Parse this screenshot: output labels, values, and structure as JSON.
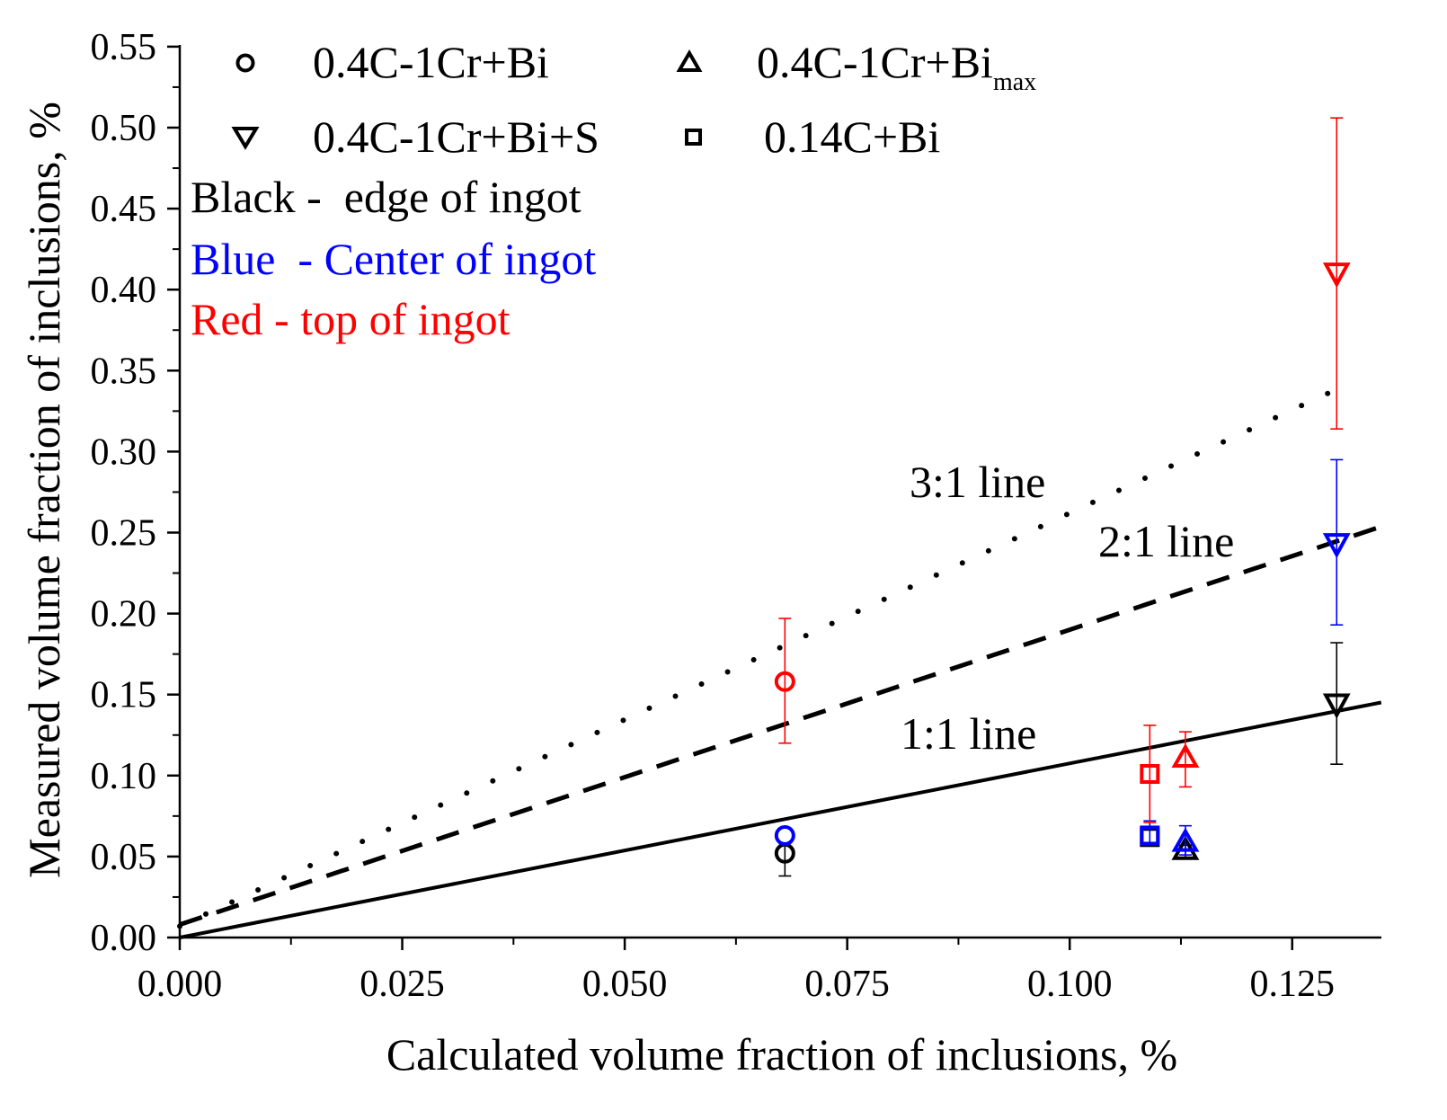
{
  "chart_data": {
    "type": "scatter",
    "xlabel": "Calculated volume fraction of inclusions, %",
    "ylabel": "Measured volume fraction of inclusions, %",
    "xlim": [
      0,
      0.135
    ],
    "ylim": [
      0,
      0.55
    ],
    "x_ticks": [
      "0.000",
      "0.025",
      "0.050",
      "0.075",
      "0.100",
      "0.125"
    ],
    "y_ticks": [
      "0.00",
      "0.05",
      "0.10",
      "0.15",
      "0.20",
      "0.25",
      "0.30",
      "0.35",
      "0.40",
      "0.45",
      "0.50",
      "0.55"
    ],
    "grid": false,
    "legend": {
      "placement": "top-left",
      "entries": [
        {
          "marker": "circle",
          "label": "0.4C-1Cr+Bi"
        },
        {
          "marker": "triangle-up",
          "label": "0.4C-1Cr+Bi",
          "subscript": "max"
        },
        {
          "marker": "triangle-down",
          "label": "0.4C-1Cr+Bi+S"
        },
        {
          "marker": "square",
          "label": "0.14C+Bi"
        }
      ]
    },
    "color_key": [
      {
        "text": "Black -  edge of ingot",
        "color": "#000000"
      },
      {
        "text": "Blue  - Center of ingot",
        "color": "#0000ff"
      },
      {
        "text": "Red - top of ingot",
        "color": "#ff0000"
      }
    ],
    "reference_lines": [
      {
        "label": "1:1 line",
        "style": "solid",
        "slope": 1.075,
        "intercept": 0.0,
        "x_range": [
          0,
          0.135
        ]
      },
      {
        "label": "2:1 line",
        "style": "dashed",
        "slope": 1.82,
        "intercept": 0.008,
        "x_range": [
          0,
          0.135
        ]
      },
      {
        "label": "3:1 line",
        "style": "dotted",
        "slope": 2.55,
        "intercept": 0.007,
        "x_range": [
          0,
          0.131
        ]
      }
    ],
    "series": [
      {
        "marker": "circle",
        "location": "edge",
        "color": "#000000",
        "points": [
          {
            "x": 0.068,
            "y": 0.052,
            "err_low": 0.038,
            "err_high": 0.058
          }
        ]
      },
      {
        "marker": "circle",
        "location": "center",
        "color": "#0000ff",
        "points": [
          {
            "x": 0.068,
            "y": 0.063
          }
        ]
      },
      {
        "marker": "circle",
        "location": "top",
        "color": "#ff0000",
        "points": [
          {
            "x": 0.068,
            "y": 0.158,
            "err_low": 0.12,
            "err_high": 0.197
          }
        ]
      },
      {
        "marker": "square",
        "location": "edge",
        "color": "#000000",
        "points": [
          {
            "x": 0.109,
            "y": 0.062
          }
        ]
      },
      {
        "marker": "square",
        "location": "center",
        "color": "#0000ff",
        "points": [
          {
            "x": 0.109,
            "y": 0.063,
            "err_low": 0.058,
            "err_high": 0.072
          }
        ]
      },
      {
        "marker": "square",
        "location": "top",
        "color": "#ff0000",
        "points": [
          {
            "x": 0.109,
            "y": 0.101,
            "err_low": 0.071,
            "err_high": 0.131
          }
        ]
      },
      {
        "marker": "triangle-up",
        "location": "edge",
        "color": "#000000",
        "points": [
          {
            "x": 0.113,
            "y": 0.054,
            "err_low": 0.049,
            "err_high": 0.057
          }
        ]
      },
      {
        "marker": "triangle-up",
        "location": "center",
        "color": "#0000ff",
        "points": [
          {
            "x": 0.113,
            "y": 0.059,
            "err_low": 0.051,
            "err_high": 0.069
          }
        ]
      },
      {
        "marker": "triangle-up",
        "location": "top",
        "color": "#ff0000",
        "points": [
          {
            "x": 0.113,
            "y": 0.111,
            "err_low": 0.093,
            "err_high": 0.127
          }
        ]
      },
      {
        "marker": "triangle-down",
        "location": "edge",
        "color": "#000000",
        "points": [
          {
            "x": 0.13,
            "y": 0.144,
            "err_low": 0.107,
            "err_high": 0.182
          }
        ]
      },
      {
        "marker": "triangle-down",
        "location": "center",
        "color": "#0000ff",
        "points": [
          {
            "x": 0.13,
            "y": 0.243,
            "err_low": 0.193,
            "err_high": 0.295
          }
        ]
      },
      {
        "marker": "triangle-down",
        "location": "top",
        "color": "#ff0000",
        "points": [
          {
            "x": 0.13,
            "y": 0.41,
            "err_low": 0.314,
            "err_high": 0.506
          }
        ]
      }
    ]
  }
}
